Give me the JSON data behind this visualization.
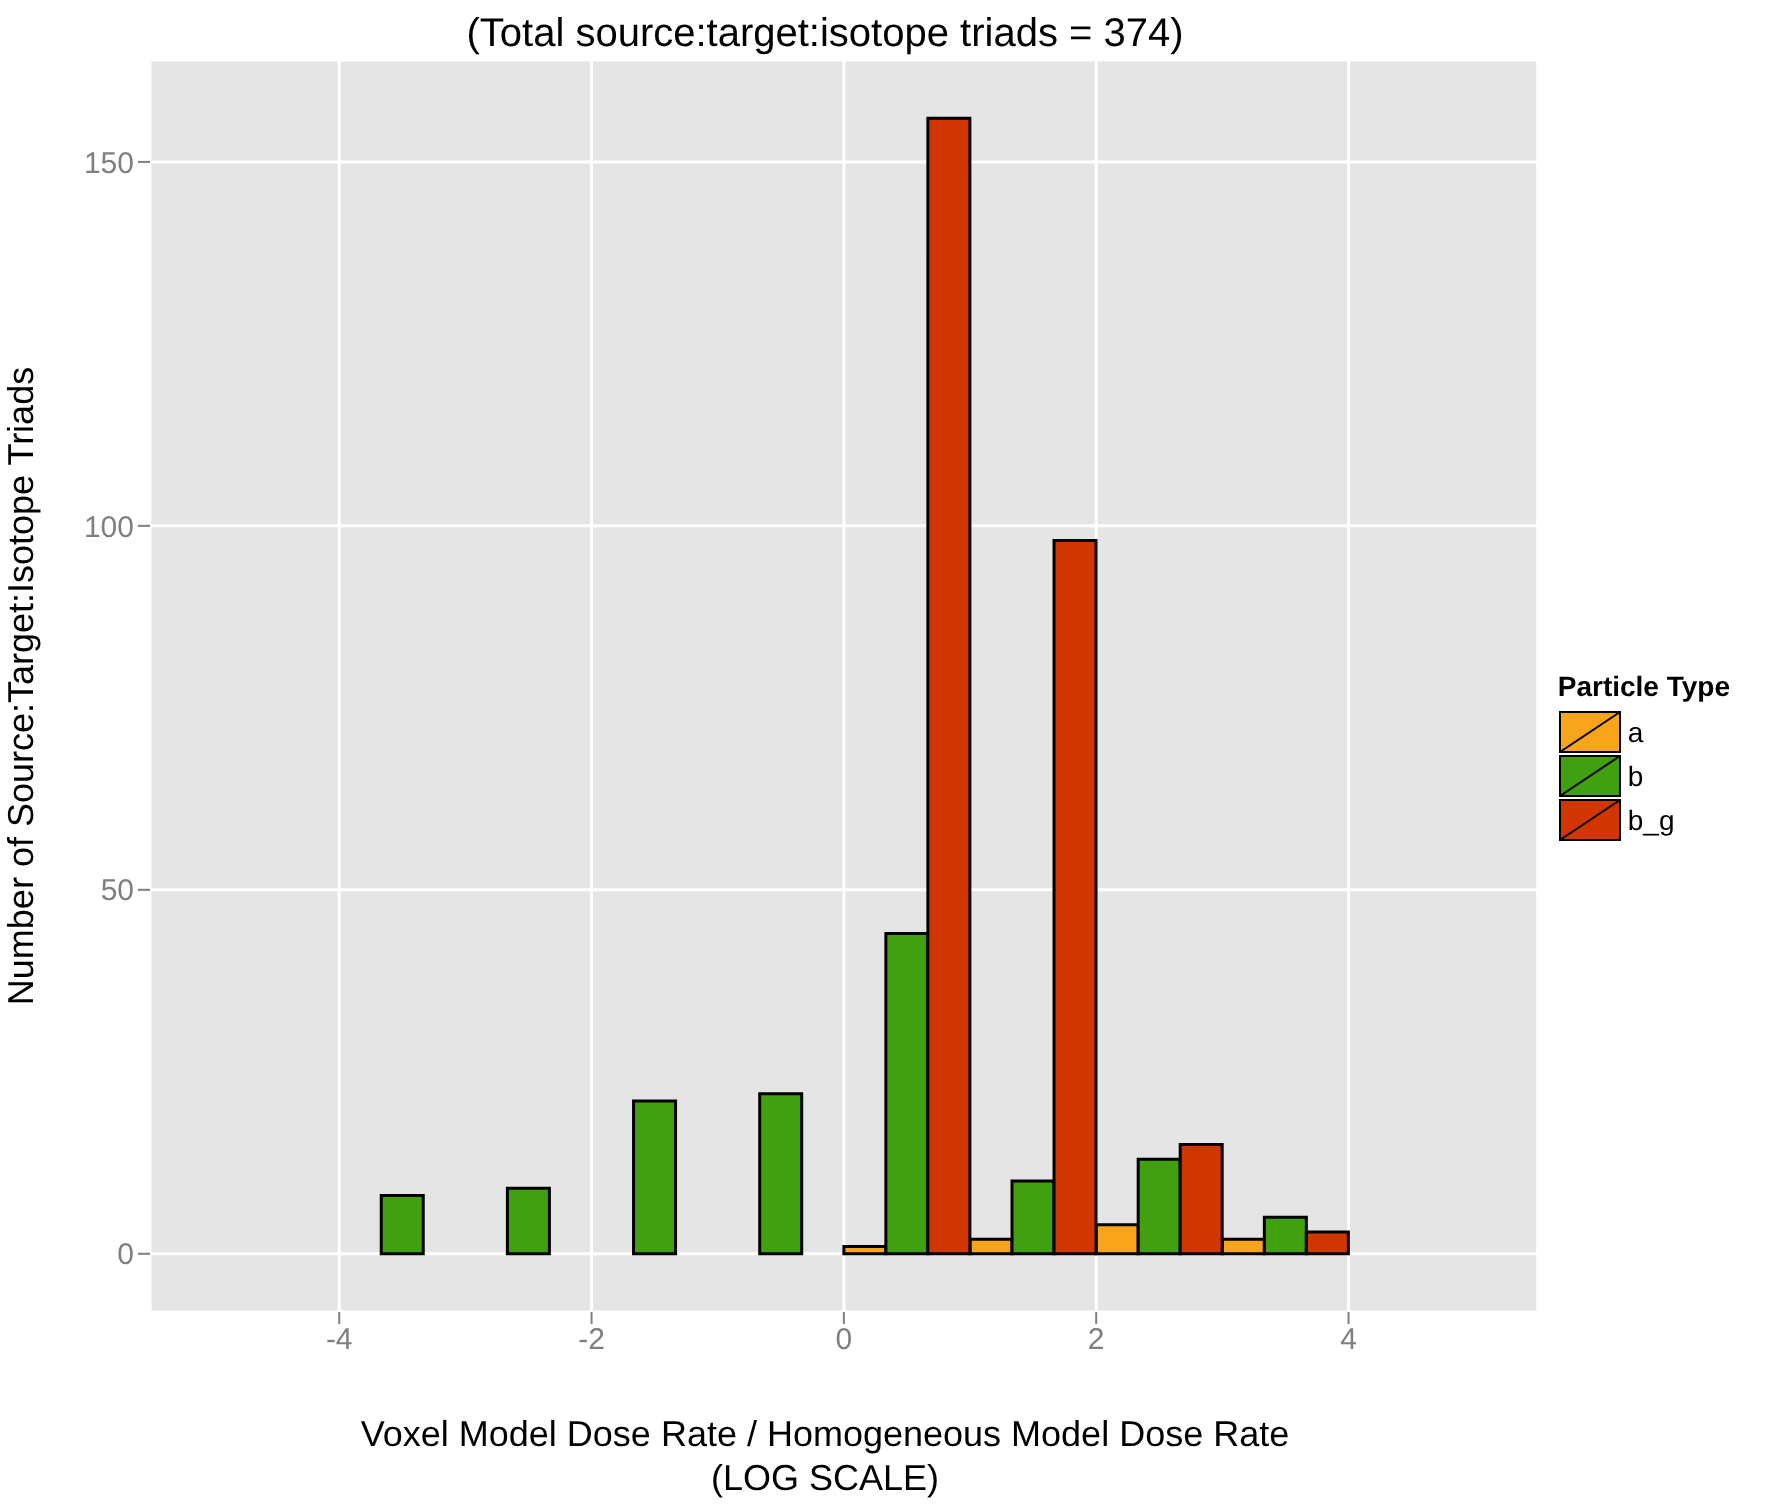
{
  "chart_data": {
    "type": "histogram",
    "title": "(Total source:target:isotope triads = 374)",
    "xlabel": "Voxel Model Dose Rate / Homogeneous Model Dose Rate\n(LOG SCALE)",
    "ylabel": "Number of Source:Target:Isotope Triads",
    "legend_title": "Particle Type",
    "bins": [
      -5,
      -4,
      -3,
      -2,
      -1,
      0,
      1,
      2,
      3,
      4,
      5
    ],
    "series": [
      {
        "name": "a",
        "color": "#f9a51b",
        "values": [
          0,
          0,
          0,
          0,
          0,
          1,
          2,
          4,
          2,
          0
        ]
      },
      {
        "name": "b",
        "color": "#40a010",
        "values": [
          0,
          8,
          9,
          21,
          22,
          44,
          10,
          13,
          5,
          0
        ]
      },
      {
        "name": "b_g",
        "color": "#d23600",
        "values": [
          0,
          0,
          0,
          0,
          0,
          156,
          98,
          15,
          3,
          0
        ]
      }
    ],
    "xlim": [
      -5.5,
      5.5
    ],
    "xticks": [
      -4,
      -2,
      0,
      2,
      4
    ],
    "ylim": [
      -8,
      164
    ],
    "yticks": [
      0,
      50,
      100,
      150
    ],
    "grid": true,
    "legend": "right"
  }
}
